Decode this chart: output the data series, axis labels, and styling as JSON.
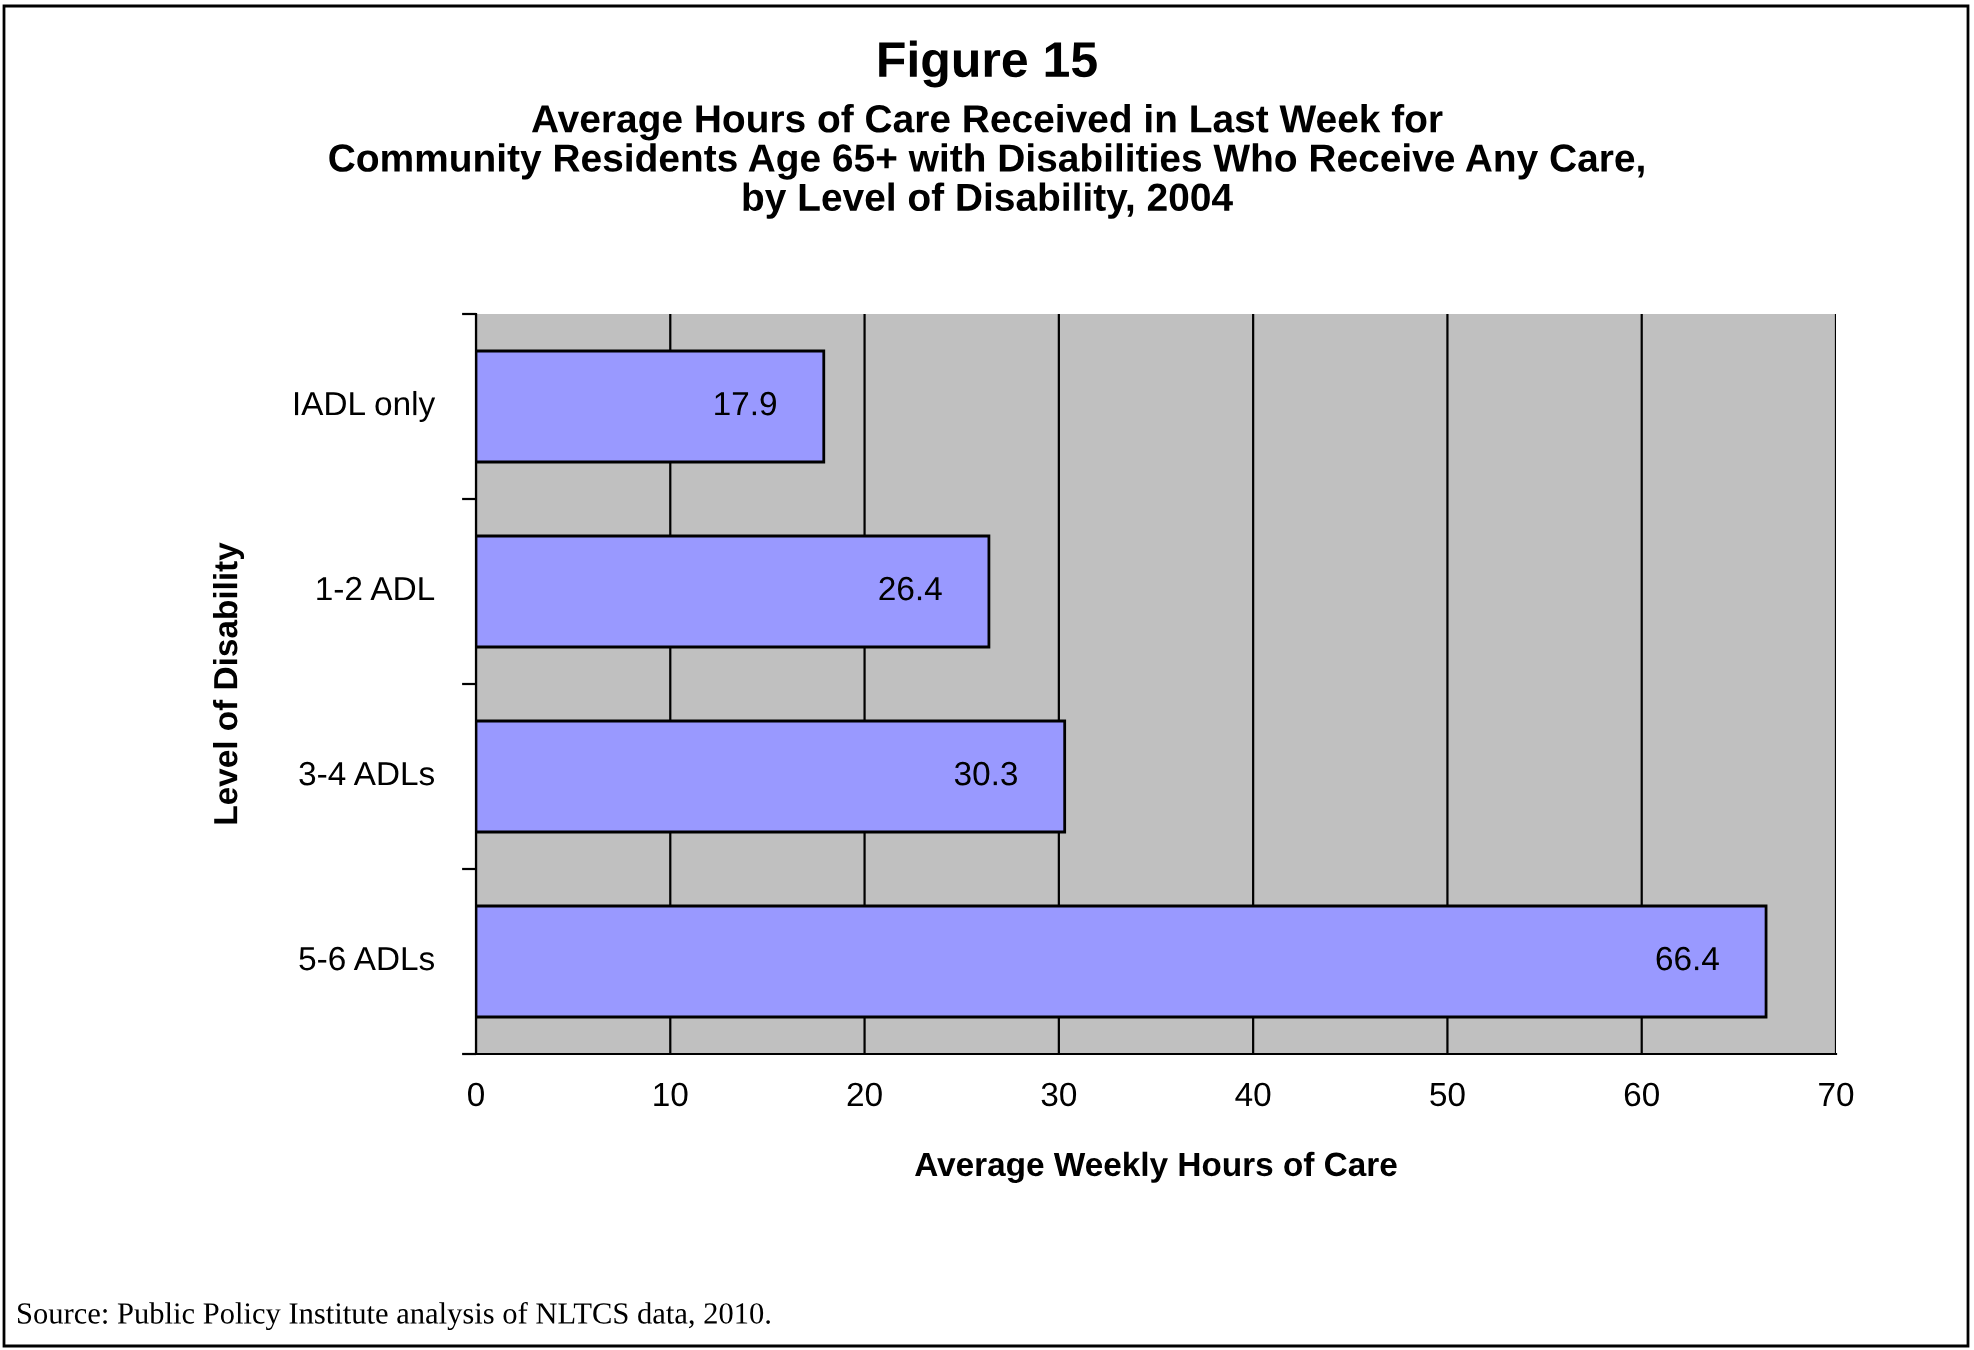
{
  "chart_data": {
    "type": "bar",
    "orientation": "horizontal",
    "title": "Figure 15",
    "subtitle": "Average Hours of Care Received in Last Week for\nCommunity Residents Age 65+ with Disabilities Who Receive Any Care,\nby Level of Disability, 2004",
    "xlabel": "Average Weekly Hours of Care",
    "ylabel": "Level of Disability",
    "categories": [
      "IADL only",
      "1-2 ADL",
      "3-4 ADLs",
      "5-6 ADLs"
    ],
    "values": [
      17.9,
      26.4,
      30.3,
      66.4
    ],
    "color": "#9999ff",
    "xlim": [
      0,
      70
    ],
    "xticks": [
      0,
      10,
      20,
      30,
      40,
      50,
      60,
      70
    ],
    "grid": "x",
    "data_labels": true,
    "annotations": [
      "Source: Public Policy Institute analysis of NLTCS data, 2010."
    ]
  }
}
